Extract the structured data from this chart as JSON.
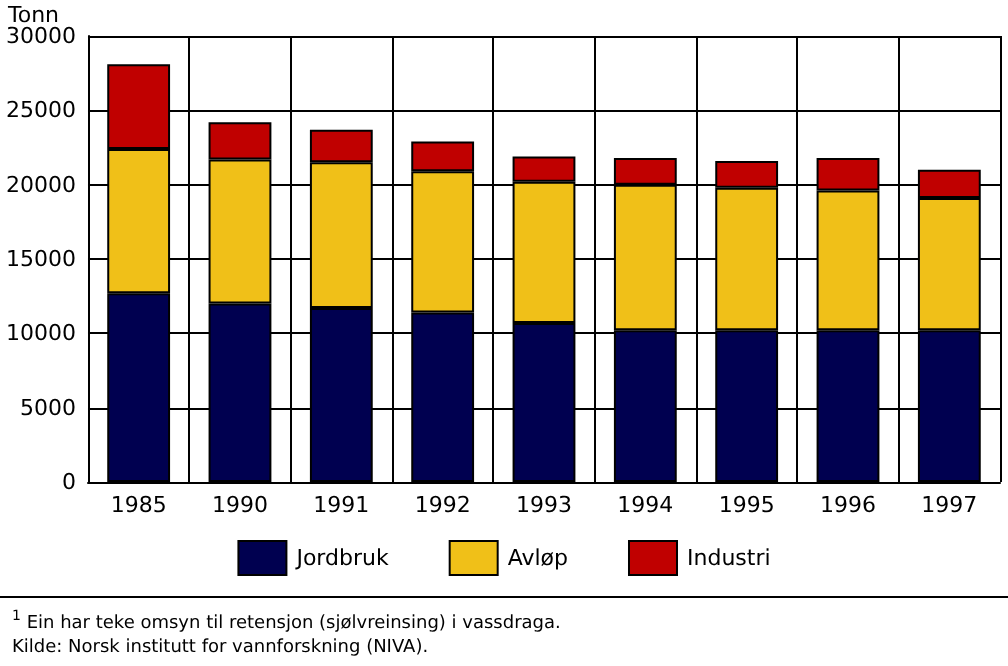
{
  "chart_data": {
    "type": "bar",
    "stacked": true,
    "ylabel": "Tonn",
    "categories": [
      "1985",
      "1990",
      "1991",
      "1992",
      "1993",
      "1994",
      "1995",
      "1996",
      "1997"
    ],
    "series": [
      {
        "name": "Jordbruk",
        "color": "#000050",
        "values": [
          12700,
          12000,
          11700,
          11400,
          10700,
          10200,
          10200,
          10200,
          10200
        ]
      },
      {
        "name": "Avløp",
        "color": "#f0c018",
        "values": [
          9700,
          9700,
          9800,
          9500,
          9500,
          9800,
          9600,
          9400,
          8900
        ]
      },
      {
        "name": "Industri",
        "color": "#c00000",
        "values": [
          5700,
          2500,
          2200,
          2000,
          1700,
          1800,
          1800,
          2200,
          1900
        ]
      }
    ],
    "ylim": [
      0,
      30000
    ],
    "yticks": [
      0,
      5000,
      10000,
      15000,
      20000,
      25000,
      30000
    ],
    "grid": true,
    "legend": "bottom",
    "annotations": [
      "$^{1}$ Ein har teke omsyn til retensjon (sjølvreinsing) i vassdraga.",
      "Kilde: Norsk institutt for vannforskning (NIVA)."
    ]
  }
}
